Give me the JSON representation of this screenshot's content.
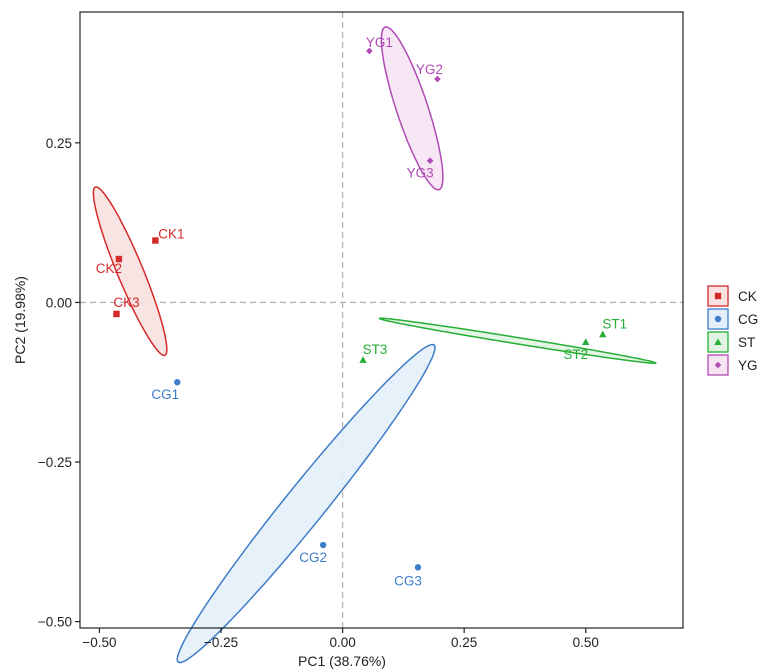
{
  "chart_data": {
    "type": "scatter",
    "title": "",
    "xlabel": "PC1 (38.76%)",
    "ylabel": "PC2 (19.98%)",
    "xlim": [
      -0.54,
      0.7
    ],
    "ylim": [
      -0.51,
      0.455
    ],
    "x_ticks": [
      -0.5,
      -0.25,
      0,
      0.25,
      0.5
    ],
    "x_tick_labels": [
      "−0.50",
      "−0.25",
      "0.00",
      "0.25",
      "0.50"
    ],
    "y_ticks": [
      -0.5,
      -0.25,
      0,
      0.25
    ],
    "y_tick_labels": [
      "−0.50",
      "−0.25",
      "0.00",
      "0.25"
    ],
    "reference_lines": {
      "x": 0,
      "y": 0,
      "style": "dashed"
    },
    "grid": false,
    "legend_position": "right",
    "series": [
      {
        "name": "CK",
        "marker": "square",
        "color": "#d42a2a",
        "fill": "#f8e1e1",
        "points": [
          {
            "label": "CK1",
            "x": -0.385,
            "y": 0.097
          },
          {
            "label": "CK2",
            "x": -0.46,
            "y": 0.068
          },
          {
            "label": "CK3",
            "x": -0.465,
            "y": -0.018
          }
        ],
        "ellipse": {
          "center": [
            -0.437,
            0.049
          ],
          "radius_x": 0.15,
          "radius_y": 0.025,
          "angle_deg": -61.2
        }
      },
      {
        "name": "CG",
        "marker": "circle",
        "color": "#3d7cc9",
        "fill": "#e3effa",
        "points": [
          {
            "label": "CG1",
            "x": -0.34,
            "y": -0.125
          },
          {
            "label": "CG2",
            "x": -0.04,
            "y": -0.38
          },
          {
            "label": "CG3",
            "x": 0.155,
            "y": -0.415
          }
        ],
        "ellipse": {
          "center": [
            -0.075,
            -0.315
          ],
          "radius_x": 0.362,
          "radius_y": 0.036,
          "angle_deg": 43.2
        }
      },
      {
        "name": "ST",
        "marker": "triangle",
        "color": "#27ae37",
        "fill": "#e1f4e3",
        "points": [
          {
            "label": "ST1",
            "x": 0.535,
            "y": -0.05
          },
          {
            "label": "ST2",
            "x": 0.5,
            "y": -0.062
          },
          {
            "label": "ST3",
            "x": 0.042,
            "y": -0.09
          }
        ],
        "ellipse": {
          "center": [
            0.36,
            -0.06
          ],
          "radius_x": 0.286,
          "radius_y": 0.005,
          "angle_deg": -7.0
        }
      },
      {
        "name": "YG",
        "marker": "diamond",
        "color": "#b04ab5",
        "fill": "#f6e4f3",
        "points": [
          {
            "label": "YG1",
            "x": 0.055,
            "y": 0.394
          },
          {
            "label": "YG2",
            "x": 0.195,
            "y": 0.35
          },
          {
            "label": "YG3",
            "x": 0.18,
            "y": 0.222
          }
        ],
        "ellipse": {
          "center": [
            0.143,
            0.304
          ],
          "radius_x": 0.139,
          "radius_y": 0.031,
          "angle_deg": -66.0
        }
      }
    ]
  }
}
